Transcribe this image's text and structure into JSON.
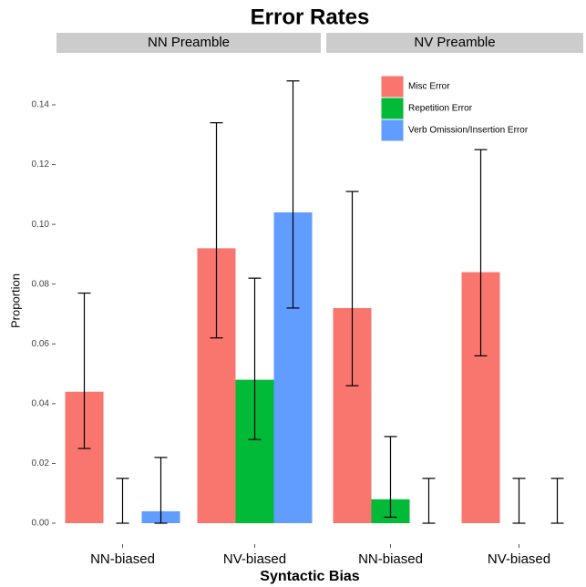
{
  "chart_data": {
    "type": "bar",
    "title": "Error Rates",
    "x_label": "Syntactic Bias",
    "y_label": "Proportion",
    "ylim": [
      0,
      0.14
    ],
    "yticks": [
      {
        "value": 0,
        "label": "0.00"
      },
      {
        "value": 0.02,
        "label": "0.02"
      },
      {
        "value": 0.04,
        "label": "0.04"
      },
      {
        "value": 0.06,
        "label": "0.06"
      },
      {
        "value": 0.08,
        "label": "0.08"
      },
      {
        "value": 0.1,
        "label": "0.10"
      },
      {
        "value": 0.12,
        "label": "0.12"
      },
      {
        "value": 0.14,
        "label": "0.14"
      }
    ],
    "series": [
      {
        "name": "Misc Error",
        "color": "#f8766d"
      },
      {
        "name": "Repetition Error",
        "color": "#00ba38"
      },
      {
        "name": "Verb Omission/Insertion Error",
        "color": "#619cff"
      }
    ],
    "facets": [
      {
        "title": "NN Preamble",
        "categories": [
          "NN-biased",
          "NV-biased"
        ],
        "values": [
          [
            0.044,
            0,
            0.004
          ],
          [
            0.092,
            0.048,
            0.104
          ]
        ],
        "lower": [
          [
            0.025,
            0,
            0
          ],
          [
            0.062,
            0.028,
            0.072
          ]
        ],
        "upper": [
          [
            0.077,
            0.015,
            0.022
          ],
          [
            0.134,
            0.082,
            0.148
          ]
        ]
      },
      {
        "title": "NV Preamble",
        "categories": [
          "NN-biased",
          "NV-biased"
        ],
        "values": [
          [
            0.072,
            0.008,
            0
          ],
          [
            0.084,
            0,
            0
          ]
        ],
        "lower": [
          [
            0.046,
            0.002,
            0
          ],
          [
            0.056,
            0,
            0
          ]
        ],
        "upper": [
          [
            0.111,
            0.029,
            0.015
          ],
          [
            0.125,
            0.015,
            0.015
          ]
        ]
      }
    ]
  }
}
